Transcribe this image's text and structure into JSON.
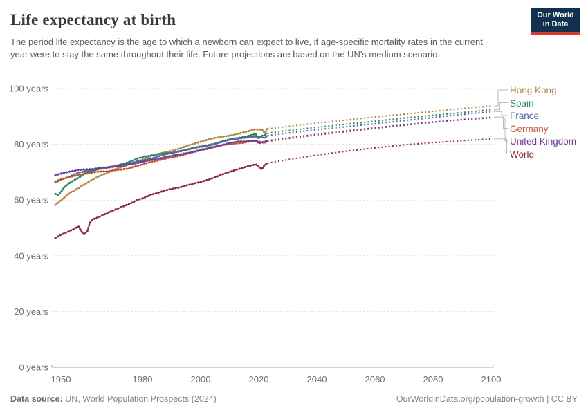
{
  "header": {
    "title": "Life expectancy at birth",
    "subtitle": "The period life expectancy is the age to which a newborn can expect to live, if age-specific mortality rates in the current year were to stay the same throughout their life. Future projections are based on the UN's medium scenario.",
    "logo_line1": "Our World",
    "logo_line2": "in Data"
  },
  "footer": {
    "source_label": "Data source:",
    "source_text": "UN, World Population Prospects (2024)",
    "attribution": "OurWorldinData.org/population-growth | CC BY"
  },
  "chart_data": {
    "type": "line",
    "title": "Life expectancy at birth",
    "xlabel": "",
    "ylabel": "years",
    "xlim": [
      1950,
      2100
    ],
    "ylim": [
      0,
      100
    ],
    "x_ticks": [
      1950,
      1980,
      2000,
      2020,
      2040,
      2060,
      2080,
      2100
    ],
    "y_ticks": [
      0,
      20,
      40,
      60,
      80,
      100
    ],
    "y_tick_suffix": " years",
    "grid": "dashed-horizontal",
    "legend_position": "right",
    "projection_start_year": 2024,
    "projection_style": "dotted",
    "series": [
      {
        "name": "Hong Kong",
        "color": "#B5874A",
        "historical": [
          [
            1950,
            58.3
          ],
          [
            1952,
            60.0
          ],
          [
            1955,
            62.6
          ],
          [
            1958,
            64.3
          ],
          [
            1960,
            65.6
          ],
          [
            1963,
            67.5
          ],
          [
            1965,
            68.5
          ],
          [
            1968,
            69.8
          ],
          [
            1970,
            70.8
          ],
          [
            1973,
            71.9
          ],
          [
            1975,
            72.6
          ],
          [
            1978,
            73.8
          ],
          [
            1980,
            74.5
          ],
          [
            1983,
            75.8
          ],
          [
            1985,
            76.4
          ],
          [
            1988,
            77.2
          ],
          [
            1990,
            77.6
          ],
          [
            1993,
            78.6
          ],
          [
            1995,
            79.3
          ],
          [
            1998,
            80.3
          ],
          [
            2000,
            80.9
          ],
          [
            2003,
            81.8
          ],
          [
            2005,
            82.3
          ],
          [
            2008,
            82.8
          ],
          [
            2010,
            83.1
          ],
          [
            2013,
            83.8
          ],
          [
            2015,
            84.3
          ],
          [
            2017,
            84.9
          ],
          [
            2019,
            85.4
          ],
          [
            2020,
            85.2
          ],
          [
            2021,
            85.4
          ],
          [
            2022,
            84.0
          ],
          [
            2023,
            85.5
          ]
        ],
        "projection": [
          [
            2023,
            85.5
          ],
          [
            2030,
            86.4
          ],
          [
            2040,
            87.6
          ],
          [
            2050,
            88.7
          ],
          [
            2060,
            89.8
          ],
          [
            2070,
            90.8
          ],
          [
            2080,
            91.8
          ],
          [
            2090,
            92.8
          ],
          [
            2100,
            93.8
          ]
        ]
      },
      {
        "name": "Spain",
        "color": "#2C8465",
        "historical": [
          [
            1950,
            62.2
          ],
          [
            1951,
            61.7
          ],
          [
            1953,
            64.4
          ],
          [
            1955,
            66.2
          ],
          [
            1957,
            67.4
          ],
          [
            1959,
            68.6
          ],
          [
            1960,
            69.6
          ],
          [
            1962,
            70.1
          ],
          [
            1965,
            71.1
          ],
          [
            1968,
            71.6
          ],
          [
            1970,
            72.0
          ],
          [
            1973,
            72.9
          ],
          [
            1975,
            73.5
          ],
          [
            1978,
            74.8
          ],
          [
            1980,
            75.4
          ],
          [
            1983,
            76.0
          ],
          [
            1985,
            76.4
          ],
          [
            1988,
            76.8
          ],
          [
            1990,
            76.9
          ],
          [
            1993,
            77.6
          ],
          [
            1995,
            78.0
          ],
          [
            1998,
            78.8
          ],
          [
            2000,
            79.2
          ],
          [
            2003,
            79.8
          ],
          [
            2005,
            80.2
          ],
          [
            2008,
            81.2
          ],
          [
            2010,
            81.8
          ],
          [
            2013,
            82.3
          ],
          [
            2015,
            82.6
          ],
          [
            2017,
            83.2
          ],
          [
            2019,
            83.7
          ],
          [
            2020,
            82.2
          ],
          [
            2021,
            83.0
          ],
          [
            2022,
            83.2
          ],
          [
            2023,
            84.0
          ]
        ],
        "projection": [
          [
            2023,
            84.0
          ],
          [
            2030,
            84.9
          ],
          [
            2040,
            86.1
          ],
          [
            2050,
            87.2
          ],
          [
            2060,
            88.3
          ],
          [
            2070,
            89.4
          ],
          [
            2080,
            90.4
          ],
          [
            2090,
            91.4
          ],
          [
            2100,
            92.4
          ]
        ]
      },
      {
        "name": "France",
        "color": "#4C6A9C",
        "historical": [
          [
            1950,
            66.4
          ],
          [
            1952,
            67.3
          ],
          [
            1955,
            68.5
          ],
          [
            1958,
            69.8
          ],
          [
            1960,
            70.3
          ],
          [
            1963,
            70.9
          ],
          [
            1965,
            71.3
          ],
          [
            1968,
            71.7
          ],
          [
            1970,
            72.2
          ],
          [
            1973,
            72.7
          ],
          [
            1975,
            73.0
          ],
          [
            1978,
            73.8
          ],
          [
            1980,
            74.2
          ],
          [
            1983,
            74.9
          ],
          [
            1985,
            75.5
          ],
          [
            1988,
            76.4
          ],
          [
            1990,
            76.9
          ],
          [
            1993,
            77.5
          ],
          [
            1995,
            78.0
          ],
          [
            1998,
            78.7
          ],
          [
            2000,
            79.1
          ],
          [
            2003,
            79.5
          ],
          [
            2005,
            80.2
          ],
          [
            2008,
            81.1
          ],
          [
            2010,
            81.6
          ],
          [
            2013,
            82.0
          ],
          [
            2015,
            82.3
          ],
          [
            2017,
            82.6
          ],
          [
            2019,
            82.8
          ],
          [
            2020,
            82.2
          ],
          [
            2021,
            82.5
          ],
          [
            2022,
            82.3
          ],
          [
            2023,
            83.1
          ]
        ],
        "projection": [
          [
            2023,
            83.1
          ],
          [
            2030,
            84.0
          ],
          [
            2040,
            85.2
          ],
          [
            2050,
            86.3
          ],
          [
            2060,
            87.4
          ],
          [
            2070,
            88.5
          ],
          [
            2080,
            89.6
          ],
          [
            2090,
            90.7
          ],
          [
            2100,
            91.7
          ]
        ]
      },
      {
        "name": "Germany",
        "color": "#C05730",
        "historical": [
          [
            1950,
            66.7
          ],
          [
            1952,
            67.4
          ],
          [
            1955,
            68.3
          ],
          [
            1958,
            69.0
          ],
          [
            1960,
            69.3
          ],
          [
            1963,
            69.9
          ],
          [
            1965,
            70.2
          ],
          [
            1968,
            70.3
          ],
          [
            1970,
            70.6
          ],
          [
            1973,
            71.0
          ],
          [
            1975,
            71.3
          ],
          [
            1978,
            72.2
          ],
          [
            1980,
            72.8
          ],
          [
            1983,
            73.7
          ],
          [
            1985,
            74.1
          ],
          [
            1988,
            74.9
          ],
          [
            1990,
            75.3
          ],
          [
            1993,
            75.9
          ],
          [
            1995,
            76.5
          ],
          [
            1998,
            77.5
          ],
          [
            2000,
            78.1
          ],
          [
            2003,
            78.7
          ],
          [
            2005,
            79.2
          ],
          [
            2008,
            79.8
          ],
          [
            2010,
            80.0
          ],
          [
            2013,
            80.4
          ],
          [
            2015,
            80.6
          ],
          [
            2017,
            81.0
          ],
          [
            2019,
            81.2
          ],
          [
            2020,
            81.0
          ],
          [
            2021,
            80.7
          ],
          [
            2022,
            80.5
          ],
          [
            2023,
            81.0
          ]
        ],
        "projection": [
          [
            2023,
            81.0
          ],
          [
            2030,
            82.0
          ],
          [
            2040,
            83.3
          ],
          [
            2050,
            84.5
          ],
          [
            2060,
            85.7
          ],
          [
            2070,
            86.8
          ],
          [
            2080,
            87.9
          ],
          [
            2090,
            88.9
          ],
          [
            2100,
            89.8
          ]
        ]
      },
      {
        "name": "United Kingdom",
        "color": "#6D3E91",
        "historical": [
          [
            1950,
            68.9
          ],
          [
            1952,
            69.5
          ],
          [
            1955,
            70.2
          ],
          [
            1958,
            70.8
          ],
          [
            1960,
            71.0
          ],
          [
            1963,
            71.1
          ],
          [
            1965,
            71.6
          ],
          [
            1968,
            71.7
          ],
          [
            1970,
            71.9
          ],
          [
            1973,
            72.3
          ],
          [
            1975,
            72.7
          ],
          [
            1978,
            73.2
          ],
          [
            1980,
            73.7
          ],
          [
            1983,
            74.4
          ],
          [
            1985,
            74.7
          ],
          [
            1988,
            75.4
          ],
          [
            1990,
            75.9
          ],
          [
            1993,
            76.4
          ],
          [
            1995,
            76.8
          ],
          [
            1998,
            77.3
          ],
          [
            2000,
            77.9
          ],
          [
            2003,
            78.5
          ],
          [
            2005,
            79.1
          ],
          [
            2008,
            79.9
          ],
          [
            2010,
            80.5
          ],
          [
            2013,
            81.0
          ],
          [
            2015,
            81.0
          ],
          [
            2017,
            81.2
          ],
          [
            2019,
            81.3
          ],
          [
            2020,
            80.4
          ],
          [
            2021,
            80.7
          ],
          [
            2022,
            80.9
          ],
          [
            2023,
            81.3
          ]
        ],
        "projection": [
          [
            2023,
            81.3
          ],
          [
            2030,
            82.3
          ],
          [
            2040,
            83.6
          ],
          [
            2050,
            84.8
          ],
          [
            2060,
            85.9
          ],
          [
            2070,
            87.0
          ],
          [
            2080,
            88.0
          ],
          [
            2090,
            88.8
          ],
          [
            2100,
            89.5
          ]
        ]
      },
      {
        "name": "World",
        "color": "#883039",
        "historical": [
          [
            1950,
            46.4
          ],
          [
            1952,
            47.6
          ],
          [
            1955,
            48.9
          ],
          [
            1957,
            50.0
          ],
          [
            1958,
            50.5
          ],
          [
            1959,
            48.7
          ],
          [
            1960,
            47.6
          ],
          [
            1961,
            48.9
          ],
          [
            1962,
            52.0
          ],
          [
            1963,
            53.1
          ],
          [
            1965,
            53.9
          ],
          [
            1968,
            55.4
          ],
          [
            1970,
            56.3
          ],
          [
            1973,
            57.6
          ],
          [
            1975,
            58.4
          ],
          [
            1978,
            59.9
          ],
          [
            1980,
            60.6
          ],
          [
            1983,
            61.9
          ],
          [
            1985,
            62.5
          ],
          [
            1988,
            63.5
          ],
          [
            1990,
            64.0
          ],
          [
            1993,
            64.6
          ],
          [
            1995,
            65.2
          ],
          [
            1998,
            66.0
          ],
          [
            2000,
            66.5
          ],
          [
            2003,
            67.4
          ],
          [
            2005,
            68.2
          ],
          [
            2008,
            69.4
          ],
          [
            2010,
            70.1
          ],
          [
            2013,
            71.1
          ],
          [
            2015,
            71.7
          ],
          [
            2017,
            72.3
          ],
          [
            2019,
            72.8
          ],
          [
            2020,
            72.0
          ],
          [
            2021,
            71.0
          ],
          [
            2022,
            72.6
          ],
          [
            2023,
            73.2
          ]
        ],
        "projection": [
          [
            2023,
            73.2
          ],
          [
            2030,
            74.5
          ],
          [
            2040,
            76.1
          ],
          [
            2050,
            77.5
          ],
          [
            2060,
            78.7
          ],
          [
            2070,
            79.8
          ],
          [
            2080,
            80.6
          ],
          [
            2090,
            81.3
          ],
          [
            2100,
            81.9
          ]
        ]
      }
    ]
  }
}
